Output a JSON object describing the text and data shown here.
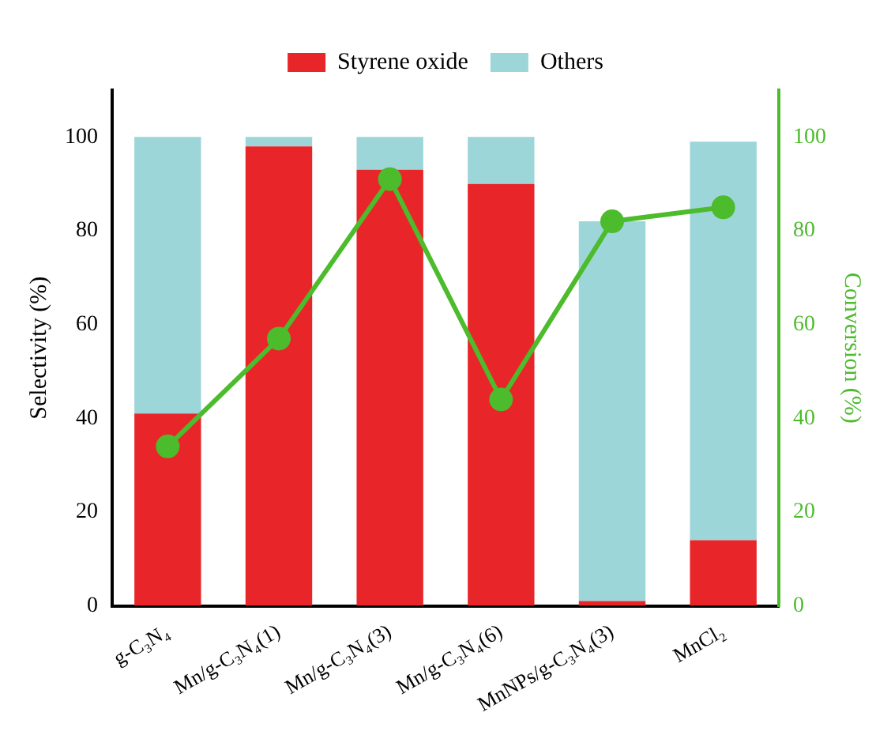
{
  "chart_data": {
    "type": "bar",
    "stacked": true,
    "categories": [
      "g-C₃N₄",
      "Mn/g-C₃N₄(1)",
      "Mn/g-C₃N₄(3)",
      "Mn/g-C₃N₄(6)",
      "MnNPs/g-C₃N₄(3)",
      "MnCl₂"
    ],
    "series": [
      {
        "name": "Styrene oxide",
        "color": "#e8262a",
        "values": [
          41,
          98,
          93,
          90,
          1,
          14
        ]
      },
      {
        "name": "Others",
        "color": "#9dd6d9",
        "values": [
          59,
          2,
          7,
          10,
          81,
          85
        ]
      },
      {
        "type": "line",
        "axis": "y2",
        "color": "#4cbb2c",
        "values": [
          34,
          57,
          91,
          44,
          82,
          85
        ],
        "marker": "circle"
      }
    ],
    "ylabel": "Selectivity (%)",
    "y2label": "Conversion (%)",
    "ylim": [
      0,
      110
    ],
    "yticks": [
      0,
      20,
      40,
      60,
      80,
      100
    ],
    "y2lim": [
      0,
      110
    ],
    "y2ticks": [
      0,
      20,
      40,
      60,
      80,
      100
    ],
    "grid": false,
    "legend": "top"
  }
}
